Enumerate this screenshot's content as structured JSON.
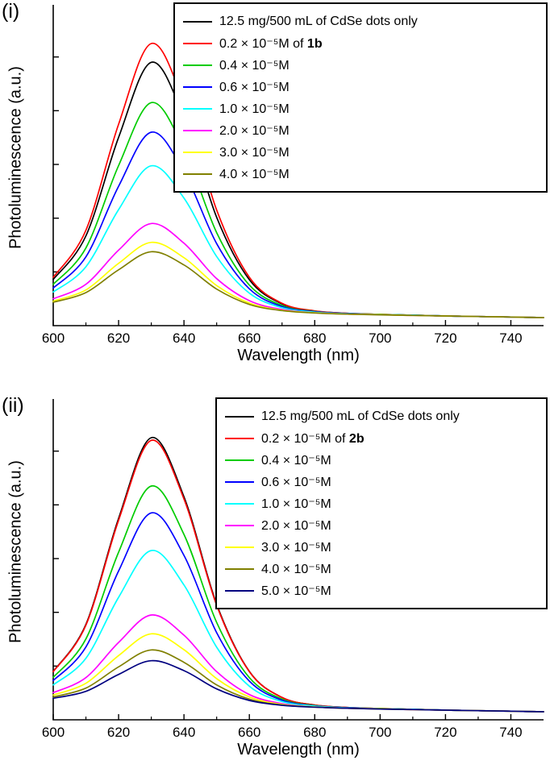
{
  "page": {
    "background": "#ffffff"
  },
  "chart_data": [
    {
      "type": "line",
      "panel_label": "(i)",
      "xlabel": "Wavelength (nm)",
      "ylabel": "Photoluminescence (a.u.)",
      "x_range": [
        600,
        750
      ],
      "x_ticks": [
        600,
        620,
        640,
        660,
        680,
        700,
        720,
        740
      ],
      "y_range": [
        0,
        1.08
      ],
      "grid": false,
      "legend_position": "top-right",
      "x": [
        600,
        610,
        620,
        630,
        640,
        650,
        660,
        670,
        680,
        690,
        700,
        710,
        720,
        730,
        740,
        750
      ],
      "series": [
        {
          "label": "12.5 mg/500 mL of CdSe dots only",
          "label_bold": "",
          "color": "#000000",
          "values": [
            0.172,
            0.334,
            0.701,
            0.98,
            0.775,
            0.403,
            0.171,
            0.081,
            0.054,
            0.046,
            0.042,
            0.039,
            0.036,
            0.034,
            0.032,
            0.03
          ]
        },
        {
          "label": "0.2 × 10⁻⁵M of ",
          "label_bold": "1b",
          "color": "#ff0000",
          "values": [
            0.18,
            0.355,
            0.75,
            1.05,
            0.83,
            0.43,
            0.18,
            0.083,
            0.055,
            0.046,
            0.042,
            0.039,
            0.036,
            0.034,
            0.032,
            0.03
          ]
        },
        {
          "label": "0.4 × 10⁻⁵M",
          "label_bold": "",
          "color": "#00cc00",
          "values": [
            0.154,
            0.289,
            0.596,
            0.83,
            0.658,
            0.346,
            0.151,
            0.075,
            0.053,
            0.045,
            0.042,
            0.039,
            0.036,
            0.034,
            0.032,
            0.03
          ]
        },
        {
          "label": "0.6 × 10⁻⁵M",
          "label_bold": "",
          "color": "#0000ff",
          "values": [
            0.14,
            0.256,
            0.519,
            0.72,
            0.573,
            0.305,
            0.137,
            0.071,
            0.052,
            0.045,
            0.041,
            0.039,
            0.036,
            0.034,
            0.032,
            0.03
          ]
        },
        {
          "label": "1.0 × 10⁻⁵M",
          "label_bold": "",
          "color": "#00ffff",
          "values": [
            0.125,
            0.219,
            0.432,
            0.595,
            0.475,
            0.257,
            0.121,
            0.067,
            0.05,
            0.044,
            0.041,
            0.039,
            0.036,
            0.034,
            0.032,
            0.03
          ]
        },
        {
          "label": "2.0 × 10⁻⁵M",
          "label_bold": "",
          "color": "#ff00ff",
          "values": [
            0.1,
            0.154,
            0.281,
            0.38,
            0.307,
            0.175,
            0.093,
            0.06,
            0.048,
            0.043,
            0.041,
            0.038,
            0.036,
            0.034,
            0.032,
            0.03
          ]
        },
        {
          "label": "3.0 × 10⁻⁵M",
          "label_bold": "",
          "color": "#ffff00",
          "values": [
            0.091,
            0.133,
            0.232,
            0.31,
            0.253,
            0.149,
            0.084,
            0.057,
            0.048,
            0.043,
            0.041,
            0.038,
            0.036,
            0.034,
            0.032,
            0.03
          ]
        },
        {
          "label": "4.0 × 10⁻⁵M",
          "label_bold": "",
          "color": "#808000",
          "values": [
            0.087,
            0.123,
            0.208,
            0.275,
            0.226,
            0.136,
            0.079,
            0.056,
            0.047,
            0.043,
            0.04,
            0.038,
            0.036,
            0.034,
            0.032,
            0.03
          ]
        }
      ]
    },
    {
      "type": "line",
      "panel_label": "(ii)",
      "xlabel": "Wavelength (nm)",
      "ylabel": "Photoluminescence (a.u.)",
      "x_range": [
        600,
        750
      ],
      "x_ticks": [
        600,
        620,
        640,
        660,
        680,
        700,
        720,
        740
      ],
      "y_range": [
        0,
        1.08
      ],
      "grid": false,
      "legend_position": "top-right",
      "x": [
        600,
        610,
        620,
        630,
        640,
        650,
        660,
        670,
        680,
        690,
        700,
        710,
        720,
        730,
        740,
        750
      ],
      "series": [
        {
          "label": "12.5 mg/500 mL of CdSe dots only",
          "label_bold": "",
          "color": "#000000",
          "values": [
            0.18,
            0.355,
            0.75,
            1.05,
            0.83,
            0.43,
            0.18,
            0.083,
            0.055,
            0.046,
            0.042,
            0.039,
            0.036,
            0.034,
            0.032,
            0.03
          ]
        },
        {
          "label": "0.2 × 10⁻⁵M of ",
          "label_bold": "2b",
          "color": "#ff0000",
          "values": [
            0.179,
            0.352,
            0.743,
            1.04,
            0.822,
            0.426,
            0.179,
            0.083,
            0.055,
            0.046,
            0.042,
            0.039,
            0.036,
            0.034,
            0.032,
            0.03
          ]
        },
        {
          "label": "0.4 × 10⁻⁵M",
          "label_bold": "",
          "color": "#00cc00",
          "values": [
            0.158,
            0.301,
            0.624,
            0.87,
            0.69,
            0.362,
            0.157,
            0.077,
            0.053,
            0.045,
            0.042,
            0.039,
            0.036,
            0.034,
            0.032,
            0.03
          ]
        },
        {
          "label": "0.6 × 10⁻⁵M",
          "label_bold": "",
          "color": "#0000ff",
          "values": [
            0.146,
            0.271,
            0.554,
            0.77,
            0.612,
            0.324,
            0.144,
            0.073,
            0.052,
            0.045,
            0.041,
            0.039,
            0.036,
            0.034,
            0.032,
            0.03
          ]
        },
        {
          "label": "1.0 × 10⁻⁵M",
          "label_bold": "",
          "color": "#00ffff",
          "values": [
            0.13,
            0.229,
            0.456,
            0.63,
            0.502,
            0.27,
            0.125,
            0.068,
            0.051,
            0.044,
            0.041,
            0.039,
            0.036,
            0.034,
            0.032,
            0.03
          ]
        },
        {
          "label": "2.0 × 10⁻⁵M",
          "label_bold": "",
          "color": "#ff00ff",
          "values": [
            0.101,
            0.157,
            0.288,
            0.39,
            0.315,
            0.179,
            0.094,
            0.06,
            0.048,
            0.043,
            0.041,
            0.038,
            0.036,
            0.034,
            0.032,
            0.03
          ]
        },
        {
          "label": "3.0 × 10⁻⁵M",
          "label_bold": "",
          "color": "#ffff00",
          "values": [
            0.092,
            0.136,
            0.239,
            0.32,
            0.261,
            0.153,
            0.085,
            0.057,
            0.048,
            0.043,
            0.041,
            0.038,
            0.036,
            0.034,
            0.032,
            0.03
          ]
        },
        {
          "label": "4.0 × 10⁻⁵M",
          "label_bold": "",
          "color": "#808000",
          "values": [
            0.085,
            0.118,
            0.197,
            0.26,
            0.214,
            0.13,
            0.077,
            0.055,
            0.047,
            0.043,
            0.04,
            0.038,
            0.036,
            0.034,
            0.032,
            0.03
          ]
        },
        {
          "label": "5.0 × 10⁻⁵M",
          "label_bold": "",
          "color": "#000080",
          "values": [
            0.08,
            0.106,
            0.169,
            0.22,
            0.183,
            0.115,
            0.072,
            0.054,
            0.047,
            0.043,
            0.04,
            0.038,
            0.036,
            0.034,
            0.032,
            0.03
          ]
        }
      ]
    }
  ]
}
